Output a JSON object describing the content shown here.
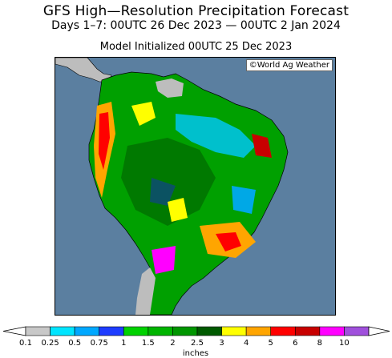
{
  "header": {
    "title": "GFS High—Resolution Precipitation Forecast",
    "subtitle": "Days 1–7: 00UTC 26 Dec 2023 — 00UTC 2 Jan 2024",
    "init": "Model Initialized 00UTC 25 Dec 2023"
  },
  "map": {
    "credit": "©World Ag Weather",
    "ocean_color": "#5b7fa0",
    "land_color": "#bdbdbd"
  },
  "legend": {
    "unit": "inches",
    "ticks": [
      "0.1",
      "0.25",
      "0.5",
      "0.75",
      "1",
      "1.5",
      "2",
      "2.5",
      "3",
      "4",
      "5",
      "6",
      "8",
      "10"
    ],
    "colors": [
      "#c8c8c8",
      "#00e5ff",
      "#00a8ff",
      "#1e3cff",
      "#00d200",
      "#00b400",
      "#009600",
      "#005a00",
      "#ffff00",
      "#ffa500",
      "#ff0000",
      "#c80000",
      "#ff00ff",
      "#a050dc"
    ]
  }
}
